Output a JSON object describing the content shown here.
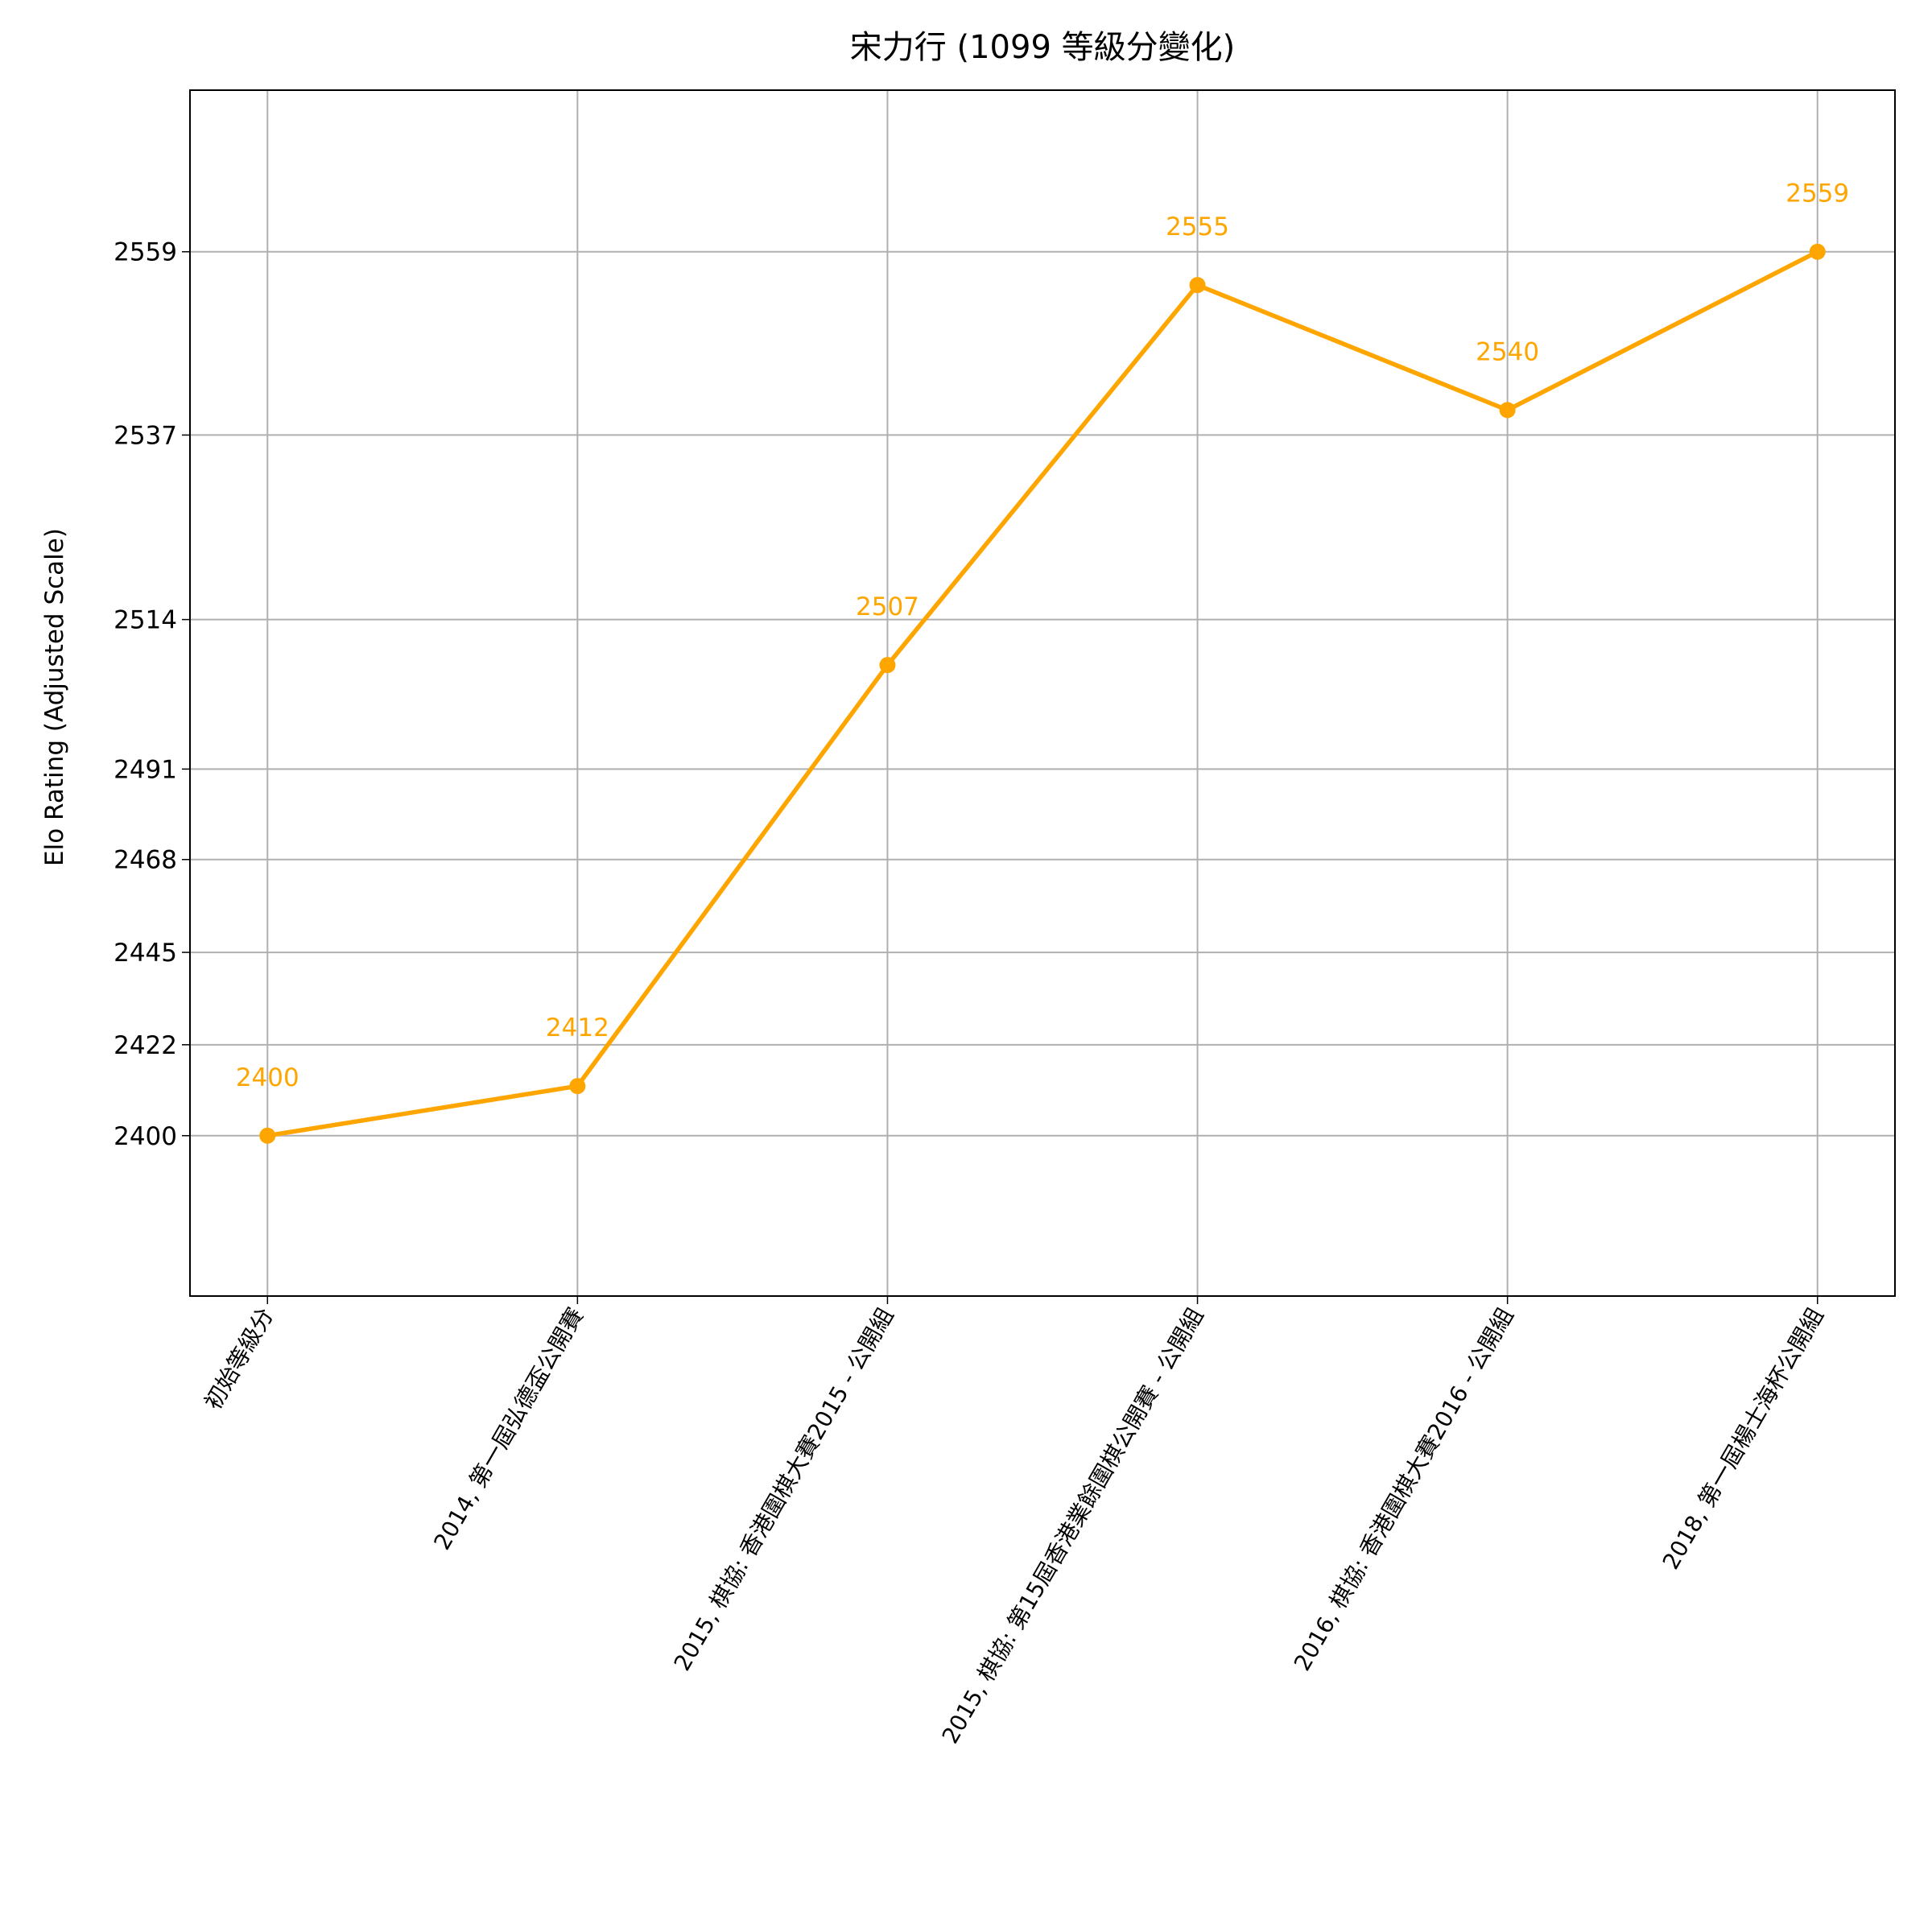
{
  "chart_data": {
    "type": "line",
    "title": "宋力行 (1099 等級分變化)",
    "y_label": "Elo Rating (Adjusted Scale)",
    "categories": [
      "初始等級分",
      "2014, 第一屆弘德盃公開賽",
      "2015, 棋協: 香港圍棋大賽2015 - 公開組",
      "2015, 棋協: 第15屆香港業餘圍棋公開賽 - 公開組",
      "2016, 棋協: 香港圍棋大賽2016 - 公開組",
      "2018, 第一屆楊士海杯公開組"
    ],
    "series": [
      {
        "name": "宋力行",
        "color": "#ffa500",
        "values": [
          2400,
          2412,
          2507,
          2555,
          2540,
          2559
        ]
      }
    ],
    "ylim": [
      2361,
      2578
    ],
    "yticks": [
      2400,
      2422,
      2445,
      2468,
      2491,
      2514,
      2537,
      2559
    ],
    "y_scale": "piecewise",
    "grid": true,
    "data_labels": true
  }
}
